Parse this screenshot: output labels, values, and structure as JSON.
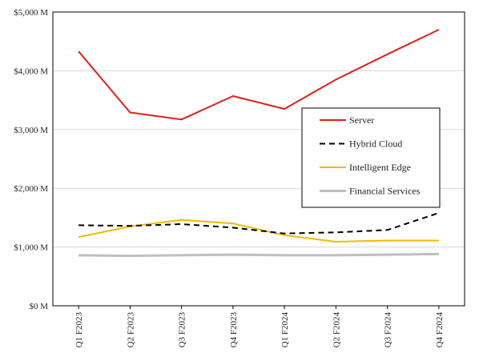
{
  "chart_data": {
    "type": "line",
    "title": "",
    "xlabel": "",
    "ylabel": "",
    "categories": [
      "Q1 F2023",
      "Q2 F2023",
      "Q3 F2023",
      "Q4 F2023",
      "Q1 F2024",
      "Q2 F2024",
      "Q3 F2024",
      "Q4 F2024"
    ],
    "ylim": [
      0,
      5000
    ],
    "y_ticks": [
      {
        "value": 0,
        "label": "$0 M"
      },
      {
        "value": 1000,
        "label": "$1,000 M"
      },
      {
        "value": 2000,
        "label": "$2,000 M"
      },
      {
        "value": 3000,
        "label": "$3,000 M"
      },
      {
        "value": 4000,
        "label": "$4,000 M"
      },
      {
        "value": 5000,
        "label": "$5,000 M"
      }
    ],
    "grid": "horizontal",
    "legend_position": "right",
    "series": [
      {
        "name": "Server",
        "color": "#e0201b",
        "dash": "solid",
        "values": [
          4330,
          3290,
          3170,
          3570,
          3350,
          3850,
          4280,
          4700
        ]
      },
      {
        "name": "Hybrid Cloud",
        "color": "#000000",
        "dash": "dashed",
        "values": [
          1370,
          1360,
          1390,
          1330,
          1230,
          1250,
          1290,
          1580
        ]
      },
      {
        "name": "Intelligent Edge",
        "color": "#f5b800",
        "dash": "solid",
        "values": [
          1170,
          1350,
          1460,
          1400,
          1200,
          1090,
          1110,
          1110
        ]
      },
      {
        "name": "Financial Services",
        "color": "#bfbfbf",
        "dash": "solid",
        "values": [
          860,
          850,
          860,
          870,
          860,
          860,
          870,
          880
        ]
      }
    ]
  }
}
